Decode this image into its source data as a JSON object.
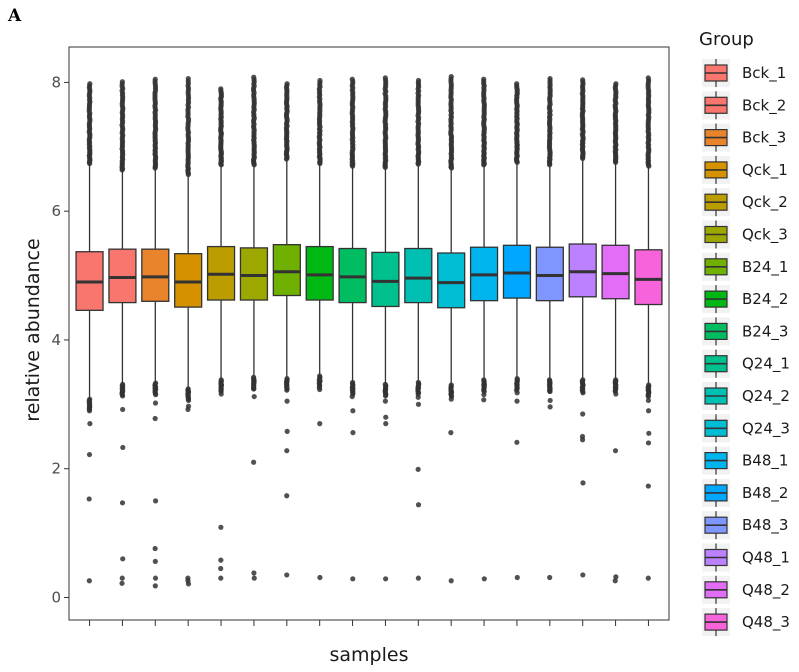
{
  "panel_label": "A",
  "chart_data": {
    "type": "box",
    "title": "",
    "xlabel": "samples",
    "ylabel": "relative abundance",
    "ylim": [
      -0.35,
      8.55
    ],
    "yticks": [
      0,
      2,
      4,
      6,
      8
    ],
    "x_tick_labels_visible": false,
    "grid": false,
    "legend": {
      "title": "Group",
      "placement": "right"
    },
    "series": [
      {
        "name": "Bck_1",
        "color": "#F8766D",
        "q1": 4.46,
        "median": 4.9,
        "q3": 5.37,
        "whisker_low": 3.1,
        "whisker_high": 6.72,
        "outliers_low": [
          2.95,
          2.7,
          2.22,
          1.53,
          0.26
        ],
        "outliers_high_max": 7.98
      },
      {
        "name": "Bck_2",
        "color": "#F8766D",
        "q1": 4.58,
        "median": 4.97,
        "q3": 5.41,
        "whisker_low": 3.33,
        "whisker_high": 6.62,
        "outliers_low": [
          3.2,
          2.92,
          2.33,
          1.47,
          0.6,
          0.3,
          0.22
        ],
        "outliers_high_max": 8.01
      },
      {
        "name": "Bck_3",
        "color": "#E9842C",
        "q1": 4.6,
        "median": 4.98,
        "q3": 5.41,
        "whisker_low": 3.35,
        "whisker_high": 6.65,
        "outliers_low": [
          3.25,
          3.02,
          2.78,
          1.5,
          0.76,
          0.56,
          0.3,
          0.18
        ],
        "outliers_high_max": 8.05
      },
      {
        "name": "Qck_1",
        "color": "#D69100",
        "q1": 4.51,
        "median": 4.9,
        "q3": 5.34,
        "whisker_low": 3.26,
        "whisker_high": 6.55,
        "outliers_low": [
          3.2,
          2.97,
          2.92,
          0.3,
          0.26,
          0.21
        ],
        "outliers_high_max": 8.06
      },
      {
        "name": "Qck_2",
        "color": "#BC9D00",
        "q1": 4.62,
        "median": 5.02,
        "q3": 5.45,
        "whisker_low": 3.4,
        "whisker_high": 6.7,
        "outliers_low": [
          3.3,
          3.16,
          1.09,
          0.58,
          0.45,
          0.3
        ],
        "outliers_high_max": 7.9
      },
      {
        "name": "Qck_3",
        "color": "#9CA700",
        "q1": 4.62,
        "median": 5.0,
        "q3": 5.43,
        "whisker_low": 3.44,
        "whisker_high": 6.7,
        "outliers_low": [
          3.36,
          3.24,
          3.12,
          2.1,
          0.38,
          0.3
        ],
        "outliers_high_max": 8.08
      },
      {
        "name": "B24_1",
        "color": "#6FB000",
        "q1": 4.69,
        "median": 5.06,
        "q3": 5.48,
        "whisker_low": 3.42,
        "whisker_high": 6.79,
        "outliers_low": [
          3.35,
          3.05,
          2.58,
          2.28,
          1.58,
          0.35
        ],
        "outliers_high_max": 7.98
      },
      {
        "name": "B24_2",
        "color": "#00B813",
        "q1": 4.62,
        "median": 5.01,
        "q3": 5.45,
        "whisker_low": 3.46,
        "whisker_high": 6.72,
        "outliers_low": [
          3.36,
          3.23,
          2.7,
          0.31
        ],
        "outliers_high_max": 8.03
      },
      {
        "name": "B24_3",
        "color": "#00BD61",
        "q1": 4.58,
        "median": 4.98,
        "q3": 5.42,
        "whisker_low": 3.36,
        "whisker_high": 6.68,
        "outliers_low": [
          3.25,
          3.12,
          2.9,
          2.56,
          0.29
        ],
        "outliers_high_max": 8.05
      },
      {
        "name": "Q24_1",
        "color": "#00C08E",
        "q1": 4.52,
        "median": 4.91,
        "q3": 5.36,
        "whisker_low": 3.33,
        "whisker_high": 6.66,
        "outliers_low": [
          3.22,
          3.05,
          2.8,
          2.7,
          0.29
        ],
        "outliers_high_max": 8.07
      },
      {
        "name": "Q24_2",
        "color": "#00C0B4",
        "q1": 4.58,
        "median": 4.96,
        "q3": 5.42,
        "whisker_low": 3.36,
        "whisker_high": 6.71,
        "outliers_low": [
          3.25,
          3.11,
          3.0,
          1.99,
          1.44,
          0.3
        ],
        "outliers_high_max": 8.03
      },
      {
        "name": "Q24_3",
        "color": "#00BDD4",
        "q1": 4.5,
        "median": 4.89,
        "q3": 5.35,
        "whisker_low": 3.32,
        "whisker_high": 6.65,
        "outliers_low": [
          3.2,
          3.08,
          2.56,
          0.26
        ],
        "outliers_high_max": 8.09
      },
      {
        "name": "B48_1",
        "color": "#00B5EE",
        "q1": 4.61,
        "median": 5.01,
        "q3": 5.44,
        "whisker_low": 3.4,
        "whisker_high": 6.7,
        "outliers_low": [
          3.3,
          3.15,
          3.07,
          0.29
        ],
        "outliers_high_max": 8.05
      },
      {
        "name": "B48_2",
        "color": "#00A7FF",
        "q1": 4.65,
        "median": 5.04,
        "q3": 5.47,
        "whisker_low": 3.42,
        "whisker_high": 6.74,
        "outliers_low": [
          3.31,
          3.18,
          3.05,
          2.41,
          0.31
        ],
        "outliers_high_max": 7.98
      },
      {
        "name": "B48_3",
        "color": "#7F96FF",
        "q1": 4.61,
        "median": 5.0,
        "q3": 5.44,
        "whisker_low": 3.4,
        "whisker_high": 6.7,
        "outliers_low": [
          3.33,
          3.2,
          3.06,
          2.96,
          0.31
        ],
        "outliers_high_max": 8.06
      },
      {
        "name": "Q48_1",
        "color": "#BC81FF",
        "q1": 4.67,
        "median": 5.06,
        "q3": 5.49,
        "whisker_low": 3.4,
        "whisker_high": 6.8,
        "outliers_low": [
          3.3,
          3.18,
          2.85,
          2.5,
          2.45,
          1.78,
          0.35
        ],
        "outliers_high_max": 8.04
      },
      {
        "name": "Q48_2",
        "color": "#E26EF7",
        "q1": 4.64,
        "median": 5.03,
        "q3": 5.47,
        "whisker_low": 3.4,
        "whisker_high": 6.74,
        "outliers_low": [
          3.35,
          3.26,
          3.16,
          2.28,
          0.32,
          0.26
        ],
        "outliers_high_max": 7.98
      },
      {
        "name": "Q48_3",
        "color": "#F763DB",
        "q1": 4.55,
        "median": 4.94,
        "q3": 5.4,
        "whisker_low": 3.32,
        "whisker_high": 6.68,
        "outliers_low": [
          3.22,
          3.06,
          2.9,
          2.55,
          2.4,
          1.73,
          0.3
        ],
        "outliers_high_max": 8.07
      }
    ]
  }
}
